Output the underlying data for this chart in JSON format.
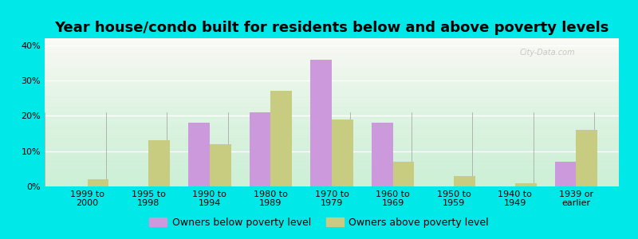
{
  "title": "Year house/condo built for residents below and above poverty levels",
  "categories": [
    "1999 to\n2000",
    "1995 to\n1998",
    "1990 to\n1994",
    "1980 to\n1989",
    "1970 to\n1979",
    "1960 to\n1969",
    "1950 to\n1959",
    "1940 to\n1949",
    "1939 or\nearlier"
  ],
  "below_poverty": [
    0,
    0,
    18,
    21,
    36,
    18,
    0,
    0,
    7
  ],
  "above_poverty": [
    2,
    13,
    12,
    27,
    19,
    7,
    3,
    1,
    16
  ],
  "below_color": "#cc99dd",
  "above_color": "#c8cc80",
  "ylim": [
    0,
    42
  ],
  "yticks": [
    0,
    10,
    20,
    30,
    40
  ],
  "ytick_labels": [
    "0%",
    "10%",
    "20%",
    "30%",
    "40%"
  ],
  "outer_bg": "#00e8e8",
  "legend_below": "Owners below poverty level",
  "legend_above": "Owners above poverty level",
  "bar_width": 0.35,
  "title_fontsize": 13,
  "tick_fontsize": 8,
  "legend_fontsize": 9
}
